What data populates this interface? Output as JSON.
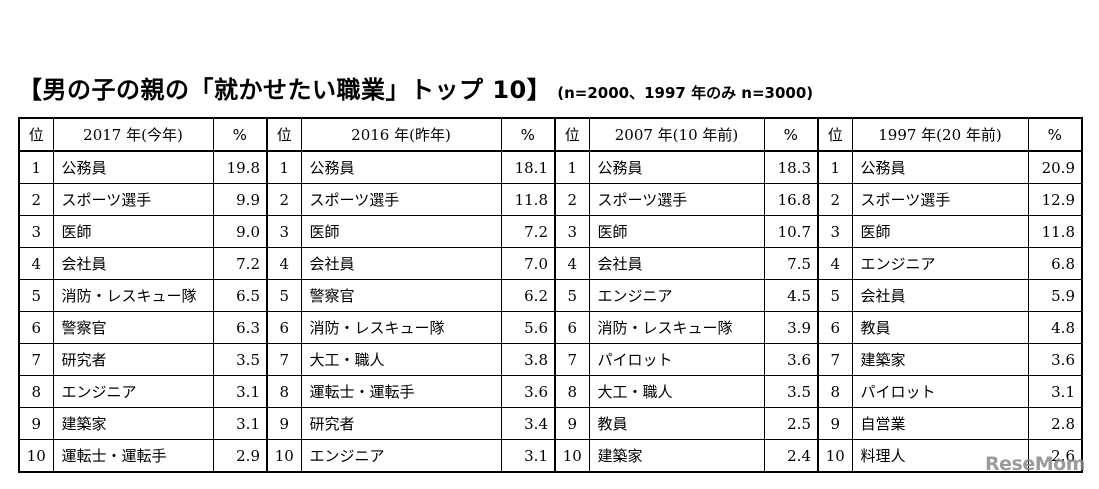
{
  "title": {
    "main": "【男の子の親の「就かせたい職業」トップ 10】",
    "sub": "(n=2000、1997 年のみ n=3000)"
  },
  "table": {
    "rank_header": "位",
    "pct_header": "%",
    "groups": [
      {
        "year_label": "2017 年(今年)",
        "rows": [
          {
            "rank": "1",
            "job": "公務員",
            "pct": "19.8"
          },
          {
            "rank": "2",
            "job": "スポーツ選手",
            "pct": "9.9"
          },
          {
            "rank": "3",
            "job": "医師",
            "pct": "9.0"
          },
          {
            "rank": "4",
            "job": "会社員",
            "pct": "7.2"
          },
          {
            "rank": "5",
            "job": "消防・レスキュー隊",
            "pct": "6.5"
          },
          {
            "rank": "6",
            "job": "警察官",
            "pct": "6.3"
          },
          {
            "rank": "7",
            "job": "研究者",
            "pct": "3.5"
          },
          {
            "rank": "8",
            "job": "エンジニア",
            "pct": "3.1"
          },
          {
            "rank": "9",
            "job": "建築家",
            "pct": "3.1"
          },
          {
            "rank": "10",
            "job": "運転士・運転手",
            "pct": "2.9"
          }
        ]
      },
      {
        "year_label": "2016 年(昨年)",
        "rows": [
          {
            "rank": "1",
            "job": "公務員",
            "pct": "18.1"
          },
          {
            "rank": "2",
            "job": "スポーツ選手",
            "pct": "11.8"
          },
          {
            "rank": "3",
            "job": "医師",
            "pct": "7.2"
          },
          {
            "rank": "4",
            "job": "会社員",
            "pct": "7.0"
          },
          {
            "rank": "5",
            "job": "警察官",
            "pct": "6.2"
          },
          {
            "rank": "6",
            "job": "消防・レスキュー隊",
            "pct": "5.6"
          },
          {
            "rank": "7",
            "job": "大工・職人",
            "pct": "3.8"
          },
          {
            "rank": "8",
            "job": "運転士・運転手",
            "pct": "3.6"
          },
          {
            "rank": "9",
            "job": "研究者",
            "pct": "3.4"
          },
          {
            "rank": "10",
            "job": "エンジニア",
            "pct": "3.1"
          }
        ]
      },
      {
        "year_label": "2007 年(10 年前)",
        "rows": [
          {
            "rank": "1",
            "job": "公務員",
            "pct": "18.3"
          },
          {
            "rank": "2",
            "job": "スポーツ選手",
            "pct": "16.8"
          },
          {
            "rank": "3",
            "job": "医師",
            "pct": "10.7"
          },
          {
            "rank": "4",
            "job": "会社員",
            "pct": "7.5"
          },
          {
            "rank": "5",
            "job": "エンジニア",
            "pct": "4.5"
          },
          {
            "rank": "6",
            "job": "消防・レスキュー隊",
            "pct": "3.9"
          },
          {
            "rank": "7",
            "job": "パイロット",
            "pct": "3.6"
          },
          {
            "rank": "8",
            "job": "大工・職人",
            "pct": "3.5"
          },
          {
            "rank": "9",
            "job": "教員",
            "pct": "2.5"
          },
          {
            "rank": "10",
            "job": "建築家",
            "pct": "2.4"
          }
        ]
      },
      {
        "year_label": "1997 年(20 年前)",
        "rows": [
          {
            "rank": "1",
            "job": "公務員",
            "pct": "20.9"
          },
          {
            "rank": "2",
            "job": "スポーツ選手",
            "pct": "12.9"
          },
          {
            "rank": "3",
            "job": "医師",
            "pct": "11.8"
          },
          {
            "rank": "4",
            "job": "エンジニア",
            "pct": "6.8"
          },
          {
            "rank": "5",
            "job": "会社員",
            "pct": "5.9"
          },
          {
            "rank": "6",
            "job": "教員",
            "pct": "4.8"
          },
          {
            "rank": "7",
            "job": "建築家",
            "pct": "3.6"
          },
          {
            "rank": "8",
            "job": "パイロット",
            "pct": "3.1"
          },
          {
            "rank": "9",
            "job": "自営業",
            "pct": "2.8"
          },
          {
            "rank": "10",
            "job": "料理人",
            "pct": "2.6"
          }
        ]
      }
    ]
  },
  "watermark": "ReseMom"
}
